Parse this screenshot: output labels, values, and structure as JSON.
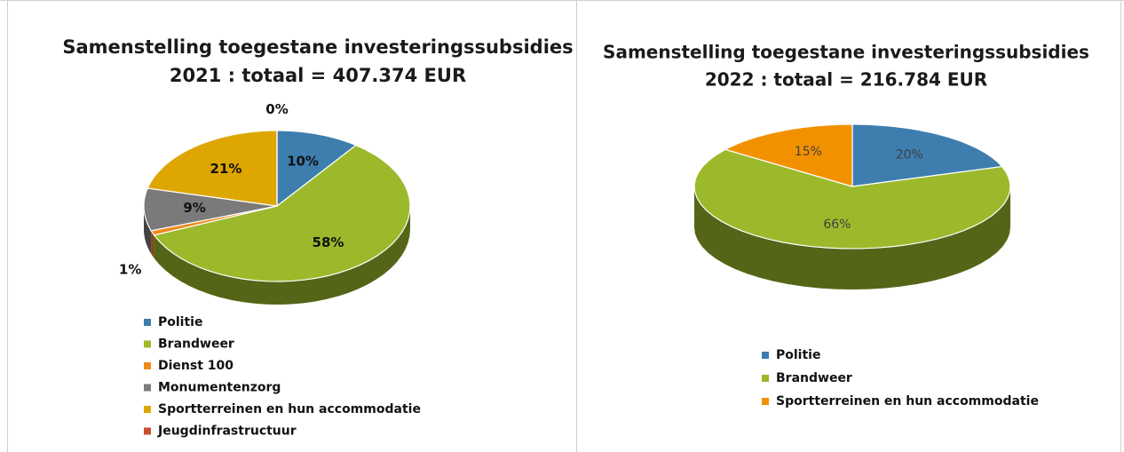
{
  "chart_data": [
    {
      "type": "pie",
      "title": "Samenstelling toegestane investeringssubsidies",
      "subtitle": "2021 : totaal = 407.374 EUR",
      "categories": [
        "Politie",
        "Brandweer",
        "Dienst 100",
        "Monumentenzorg",
        "Sportterreinen en hun accommodatie",
        "Jeugdinfrastructuur"
      ],
      "values": [
        10,
        58,
        1,
        9,
        21,
        0
      ],
      "value_labels": [
        "10%",
        "58%",
        "1%",
        "9%",
        "21%",
        "0%"
      ],
      "colors": [
        "#3d7eaf",
        "#9cb92c",
        "#ef8a1c",
        "#7a7a7a",
        "#dea600",
        "#c7502c"
      ],
      "legend": "bottom"
    },
    {
      "type": "pie",
      "title": "Samenstelling toegestane investeringssubsidies",
      "subtitle": "2022 : totaal = 216.784 EUR",
      "categories": [
        "Politie",
        "Brandweer",
        "Sportterreinen en hun accommodatie"
      ],
      "values": [
        20,
        66,
        15
      ],
      "value_labels": [
        "20%",
        "66%",
        "15%"
      ],
      "colors": [
        "#3d7eaf",
        "#9cb92c",
        "#f29100"
      ],
      "legend": "bottom"
    }
  ]
}
